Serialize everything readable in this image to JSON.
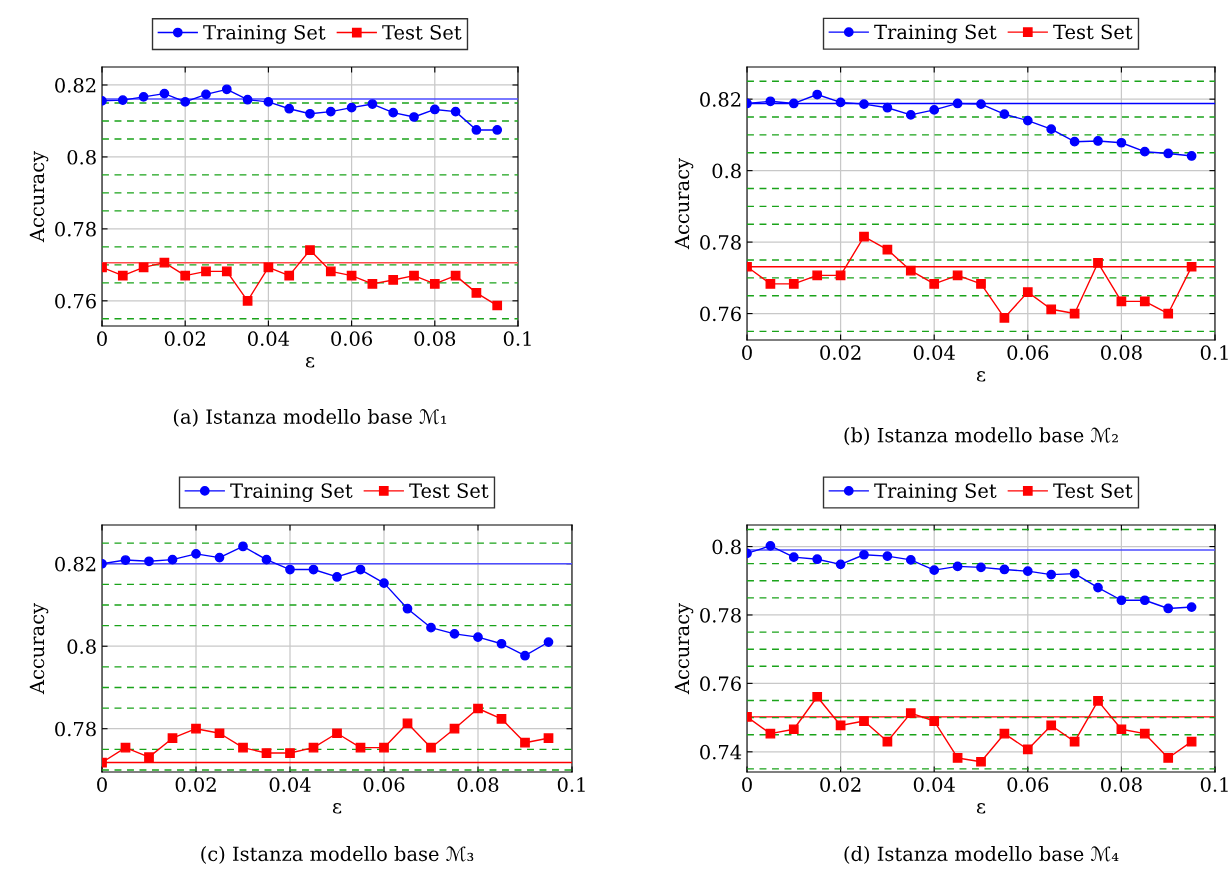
{
  "chart_data": [
    {
      "type": "line",
      "title": "(a) Istanza modello base ℳ₁",
      "xlabel": "ε",
      "ylabel": "Accuracy",
      "legend": "top",
      "grid": true,
      "x": [
        0,
        0.005,
        0.01,
        0.015,
        0.02,
        0.025,
        0.03,
        0.035,
        0.04,
        0.045,
        0.05,
        0.055,
        0.06,
        0.065,
        0.07,
        0.075,
        0.08,
        0.085,
        0.09,
        0.095
      ],
      "xlim": [
        0,
        0.1
      ],
      "xticks": [
        0,
        0.02,
        0.04,
        0.06,
        0.08,
        0.1
      ],
      "ylim": [
        0.753,
        0.825
      ],
      "yticks": [
        0.76,
        0.78,
        0.8,
        0.82
      ],
      "series": [
        {
          "name": "Training Set",
          "color": "#0000ff",
          "marker": "circle",
          "values": [
            0.8156,
            0.8158,
            0.8167,
            0.8176,
            0.8153,
            0.8174,
            0.8188,
            0.8159,
            0.8153,
            0.8134,
            0.812,
            0.8126,
            0.8137,
            0.8147,
            0.8123,
            0.8111,
            0.8132,
            0.8126,
            0.8075,
            0.8075
          ]
        },
        {
          "name": "Test Set",
          "color": "#ff0000",
          "marker": "square",
          "values": [
            0.7693,
            0.767,
            0.7693,
            0.7706,
            0.767,
            0.7682,
            0.7682,
            0.76,
            0.7693,
            0.767,
            0.7741,
            0.7682,
            0.767,
            0.7647,
            0.7658,
            0.767,
            0.7647,
            0.767,
            0.7622,
            0.7587
          ]
        }
      ],
      "ref_lines": [
        {
          "axis": "y",
          "value": 0.8161,
          "color": "#4d4dff",
          "line_style": "solid"
        },
        {
          "axis": "y",
          "value": 0.7706,
          "color": "#ff4d4d",
          "line_style": "solid"
        },
        {
          "axis": "y",
          "value": 0.755,
          "color": "#1aa31a",
          "line_style": "dashed"
        },
        {
          "axis": "y",
          "value": 0.765,
          "color": "#1aa31a",
          "line_style": "dashed"
        },
        {
          "axis": "y",
          "value": 0.77,
          "color": "#1aa31a",
          "line_style": "dashed"
        },
        {
          "axis": "y",
          "value": 0.775,
          "color": "#1aa31a",
          "line_style": "dashed"
        },
        {
          "axis": "y",
          "value": 0.785,
          "color": "#1aa31a",
          "line_style": "dashed"
        },
        {
          "axis": "y",
          "value": 0.79,
          "color": "#1aa31a",
          "line_style": "dashed"
        },
        {
          "axis": "y",
          "value": 0.795,
          "color": "#1aa31a",
          "line_style": "dashed"
        },
        {
          "axis": "y",
          "value": 0.805,
          "color": "#1aa31a",
          "line_style": "dashed"
        },
        {
          "axis": "y",
          "value": 0.81,
          "color": "#1aa31a",
          "line_style": "dashed"
        },
        {
          "axis": "y",
          "value": 0.815,
          "color": "#1aa31a",
          "line_style": "dashed"
        }
      ]
    },
    {
      "type": "line",
      "title": "(b) Istanza modello base ℳ₂",
      "xlabel": "ε",
      "ylabel": "Accuracy",
      "legend": "top",
      "grid": true,
      "x": [
        0,
        0.005,
        0.01,
        0.015,
        0.02,
        0.025,
        0.03,
        0.035,
        0.04,
        0.045,
        0.05,
        0.055,
        0.06,
        0.065,
        0.07,
        0.075,
        0.08,
        0.085,
        0.09,
        0.095
      ],
      "xlim": [
        0,
        0.1
      ],
      "xticks": [
        0,
        0.02,
        0.04,
        0.06,
        0.08,
        0.1
      ],
      "ylim": [
        0.7526,
        0.829
      ],
      "yticks": [
        0.76,
        0.78,
        0.8,
        0.82
      ],
      "series": [
        {
          "name": "Training Set",
          "color": "#0000ff",
          "marker": "circle",
          "values": [
            0.8188,
            0.8194,
            0.8188,
            0.8213,
            0.8191,
            0.8186,
            0.8176,
            0.8156,
            0.817,
            0.8188,
            0.8186,
            0.8158,
            0.814,
            0.8116,
            0.8081,
            0.8083,
            0.8078,
            0.8053,
            0.8048,
            0.8041
          ]
        },
        {
          "name": "Test Set",
          "color": "#ff0000",
          "marker": "square",
          "values": [
            0.7731,
            0.7683,
            0.7683,
            0.7707,
            0.7707,
            0.7815,
            0.7779,
            0.772,
            0.7683,
            0.7707,
            0.7683,
            0.7588,
            0.766,
            0.7612,
            0.76,
            0.7742,
            0.7634,
            0.7634,
            0.76,
            0.7731
          ]
        }
      ],
      "ref_lines": [
        {
          "axis": "y",
          "value": 0.8188,
          "color": "#0000ff",
          "line_style": "solid"
        },
        {
          "axis": "y",
          "value": 0.7731,
          "color": "#ff0000",
          "line_style": "solid"
        },
        {
          "axis": "y",
          "value": 0.755,
          "color": "#1aa31a",
          "line_style": "dashed"
        },
        {
          "axis": "y",
          "value": 0.765,
          "color": "#1aa31a",
          "line_style": "dashed"
        },
        {
          "axis": "y",
          "value": 0.77,
          "color": "#1aa31a",
          "line_style": "dashed"
        },
        {
          "axis": "y",
          "value": 0.775,
          "color": "#1aa31a",
          "line_style": "dashed"
        },
        {
          "axis": "y",
          "value": 0.785,
          "color": "#1aa31a",
          "line_style": "dashed"
        },
        {
          "axis": "y",
          "value": 0.79,
          "color": "#1aa31a",
          "line_style": "dashed"
        },
        {
          "axis": "y",
          "value": 0.795,
          "color": "#1aa31a",
          "line_style": "dashed"
        },
        {
          "axis": "y",
          "value": 0.805,
          "color": "#1aa31a",
          "line_style": "dashed"
        },
        {
          "axis": "y",
          "value": 0.81,
          "color": "#1aa31a",
          "line_style": "dashed"
        },
        {
          "axis": "y",
          "value": 0.815,
          "color": "#1aa31a",
          "line_style": "dashed"
        },
        {
          "axis": "y",
          "value": 0.825,
          "color": "#1aa31a",
          "line_style": "dashed"
        }
      ]
    },
    {
      "type": "line",
      "title": "(c) Istanza modello base ℳ₃",
      "xlabel": "ε",
      "ylabel": "Accuracy",
      "legend": "top",
      "grid": true,
      "x": [
        0,
        0.005,
        0.01,
        0.015,
        0.02,
        0.025,
        0.03,
        0.035,
        0.04,
        0.045,
        0.05,
        0.055,
        0.06,
        0.065,
        0.07,
        0.075,
        0.08,
        0.085,
        0.09,
        0.095
      ],
      "xlim": [
        0,
        0.1
      ],
      "xticks": [
        0,
        0.02,
        0.04,
        0.06,
        0.08,
        0.1
      ],
      "ylim": [
        0.7695,
        0.8294
      ],
      "yticks": [
        0.78,
        0.8,
        0.82
      ],
      "series": [
        {
          "name": "Training Set",
          "color": "#0000ff",
          "marker": "circle",
          "values": [
            0.82,
            0.8209,
            0.8206,
            0.821,
            0.8224,
            0.8215,
            0.8242,
            0.821,
            0.8186,
            0.8186,
            0.8168,
            0.8186,
            0.8153,
            0.8091,
            0.8045,
            0.803,
            0.8022,
            0.8006,
            0.7977,
            0.801
          ]
        },
        {
          "name": "Test Set",
          "color": "#ff0000",
          "marker": "square",
          "values": [
            0.7718,
            0.7754,
            0.7731,
            0.7777,
            0.78,
            0.7789,
            0.7754,
            0.7741,
            0.7741,
            0.7754,
            0.7789,
            0.7754,
            0.7754,
            0.7813,
            0.7754,
            0.78,
            0.7849,
            0.7824,
            0.7766,
            0.7777
          ]
        }
      ],
      "ref_lines": [
        {
          "axis": "y",
          "value": 0.82,
          "color": "#4d4dff",
          "line_style": "solid"
        },
        {
          "axis": "y",
          "value": 0.7718,
          "color": "#ff0000",
          "line_style": "solid"
        },
        {
          "axis": "y",
          "value": 0.77,
          "color": "#1aa31a",
          "line_style": "dashed"
        },
        {
          "axis": "y",
          "value": 0.775,
          "color": "#1aa31a",
          "line_style": "dashed"
        },
        {
          "axis": "y",
          "value": 0.785,
          "color": "#1aa31a",
          "line_style": "dashed"
        },
        {
          "axis": "y",
          "value": 0.79,
          "color": "#1aa31a",
          "line_style": "dashed"
        },
        {
          "axis": "y",
          "value": 0.795,
          "color": "#1aa31a",
          "line_style": "dashed"
        },
        {
          "axis": "y",
          "value": 0.805,
          "color": "#1aa31a",
          "line_style": "dashed"
        },
        {
          "axis": "y",
          "value": 0.81,
          "color": "#1aa31a",
          "line_style": "dashed"
        },
        {
          "axis": "y",
          "value": 0.815,
          "color": "#1aa31a",
          "line_style": "dashed"
        },
        {
          "axis": "y",
          "value": 0.825,
          "color": "#1aa31a",
          "line_style": "dashed"
        }
      ]
    },
    {
      "type": "line",
      "title": "(d) Istanza modello base ℳ₄",
      "xlabel": "ε",
      "ylabel": "Accuracy",
      "legend": "top",
      "grid": true,
      "x": [
        0,
        0.005,
        0.01,
        0.015,
        0.02,
        0.025,
        0.03,
        0.035,
        0.04,
        0.045,
        0.05,
        0.055,
        0.06,
        0.065,
        0.07,
        0.075,
        0.08,
        0.085,
        0.09,
        0.095
      ],
      "xlim": [
        0,
        0.1
      ],
      "xticks": [
        0,
        0.02,
        0.04,
        0.06,
        0.08,
        0.1
      ],
      "ylim": [
        0.7341,
        0.8063
      ],
      "yticks": [
        0.74,
        0.76,
        0.78,
        0.8
      ],
      "series": [
        {
          "name": "Training Set",
          "color": "#0000ff",
          "marker": "circle",
          "values": [
            0.798,
            0.8002,
            0.7969,
            0.7963,
            0.7948,
            0.7976,
            0.7972,
            0.7961,
            0.7931,
            0.7942,
            0.7939,
            0.7933,
            0.7928,
            0.7918,
            0.7921,
            0.788,
            0.7843,
            0.7843,
            0.7819,
            0.7823
          ]
        },
        {
          "name": "Test Set",
          "color": "#ff0000",
          "marker": "square",
          "values": [
            0.7502,
            0.7453,
            0.7466,
            0.7561,
            0.7477,
            0.749,
            0.743,
            0.7513,
            0.749,
            0.7382,
            0.7371,
            0.7453,
            0.7407,
            0.7477,
            0.743,
            0.7549,
            0.7466,
            0.7453,
            0.7382,
            0.743
          ]
        }
      ],
      "ref_lines": [
        {
          "axis": "y",
          "value": 0.799,
          "color": "#4d4dff",
          "line_style": "solid"
        },
        {
          "axis": "y",
          "value": 0.7502,
          "color": "#ff0000",
          "line_style": "solid"
        },
        {
          "axis": "y",
          "value": 0.735,
          "color": "#1aa31a",
          "line_style": "dashed"
        },
        {
          "axis": "y",
          "value": 0.745,
          "color": "#1aa31a",
          "line_style": "dashed"
        },
        {
          "axis": "y",
          "value": 0.75,
          "color": "#1aa31a",
          "line_style": "dashed"
        },
        {
          "axis": "y",
          "value": 0.755,
          "color": "#1aa31a",
          "line_style": "dashed"
        },
        {
          "axis": "y",
          "value": 0.765,
          "color": "#1aa31a",
          "line_style": "dashed"
        },
        {
          "axis": "y",
          "value": 0.77,
          "color": "#1aa31a",
          "line_style": "dashed"
        },
        {
          "axis": "y",
          "value": 0.775,
          "color": "#1aa31a",
          "line_style": "dashed"
        },
        {
          "axis": "y",
          "value": 0.785,
          "color": "#1aa31a",
          "line_style": "dashed"
        },
        {
          "axis": "y",
          "value": 0.79,
          "color": "#1aa31a",
          "line_style": "dashed"
        },
        {
          "axis": "y",
          "value": 0.795,
          "color": "#1aa31a",
          "line_style": "dashed"
        },
        {
          "axis": "y",
          "value": 0.805,
          "color": "#1aa31a",
          "line_style": "dashed"
        }
      ]
    }
  ]
}
